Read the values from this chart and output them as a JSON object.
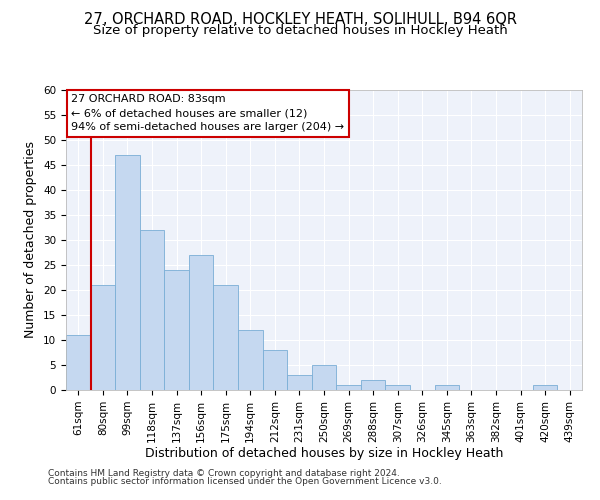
{
  "title": "27, ORCHARD ROAD, HOCKLEY HEATH, SOLIHULL, B94 6QR",
  "subtitle": "Size of property relative to detached houses in Hockley Heath",
  "xlabel": "Distribution of detached houses by size in Hockley Heath",
  "ylabel": "Number of detached properties",
  "categories": [
    "61sqm",
    "80sqm",
    "99sqm",
    "118sqm",
    "137sqm",
    "156sqm",
    "175sqm",
    "194sqm",
    "212sqm",
    "231sqm",
    "250sqm",
    "269sqm",
    "288sqm",
    "307sqm",
    "326sqm",
    "345sqm",
    "363sqm",
    "382sqm",
    "401sqm",
    "420sqm",
    "439sqm"
  ],
  "values": [
    11,
    21,
    47,
    32,
    24,
    27,
    21,
    12,
    8,
    3,
    5,
    1,
    2,
    1,
    0,
    1,
    0,
    0,
    0,
    1,
    0
  ],
  "bar_color": "#c5d8f0",
  "bar_edge_color": "#7aaed6",
  "ylim": [
    0,
    60
  ],
  "yticks": [
    0,
    5,
    10,
    15,
    20,
    25,
    30,
    35,
    40,
    45,
    50,
    55,
    60
  ],
  "property_label": "27 ORCHARD ROAD: 83sqm",
  "annotation_line1": "← 6% of detached houses are smaller (12)",
  "annotation_line2": "94% of semi-detached houses are larger (204) →",
  "red_line_x": 0.5,
  "annotation_box_color": "#ffffff",
  "annotation_box_edge": "#cc0000",
  "footer_line1": "Contains HM Land Registry data © Crown copyright and database right 2024.",
  "footer_line2": "Contains public sector information licensed under the Open Government Licence v3.0.",
  "background_color": "#eef2fa",
  "title_fontsize": 10.5,
  "subtitle_fontsize": 9.5,
  "axis_label_fontsize": 9,
  "tick_fontsize": 7.5,
  "annotation_fontsize": 8,
  "footer_fontsize": 6.5
}
